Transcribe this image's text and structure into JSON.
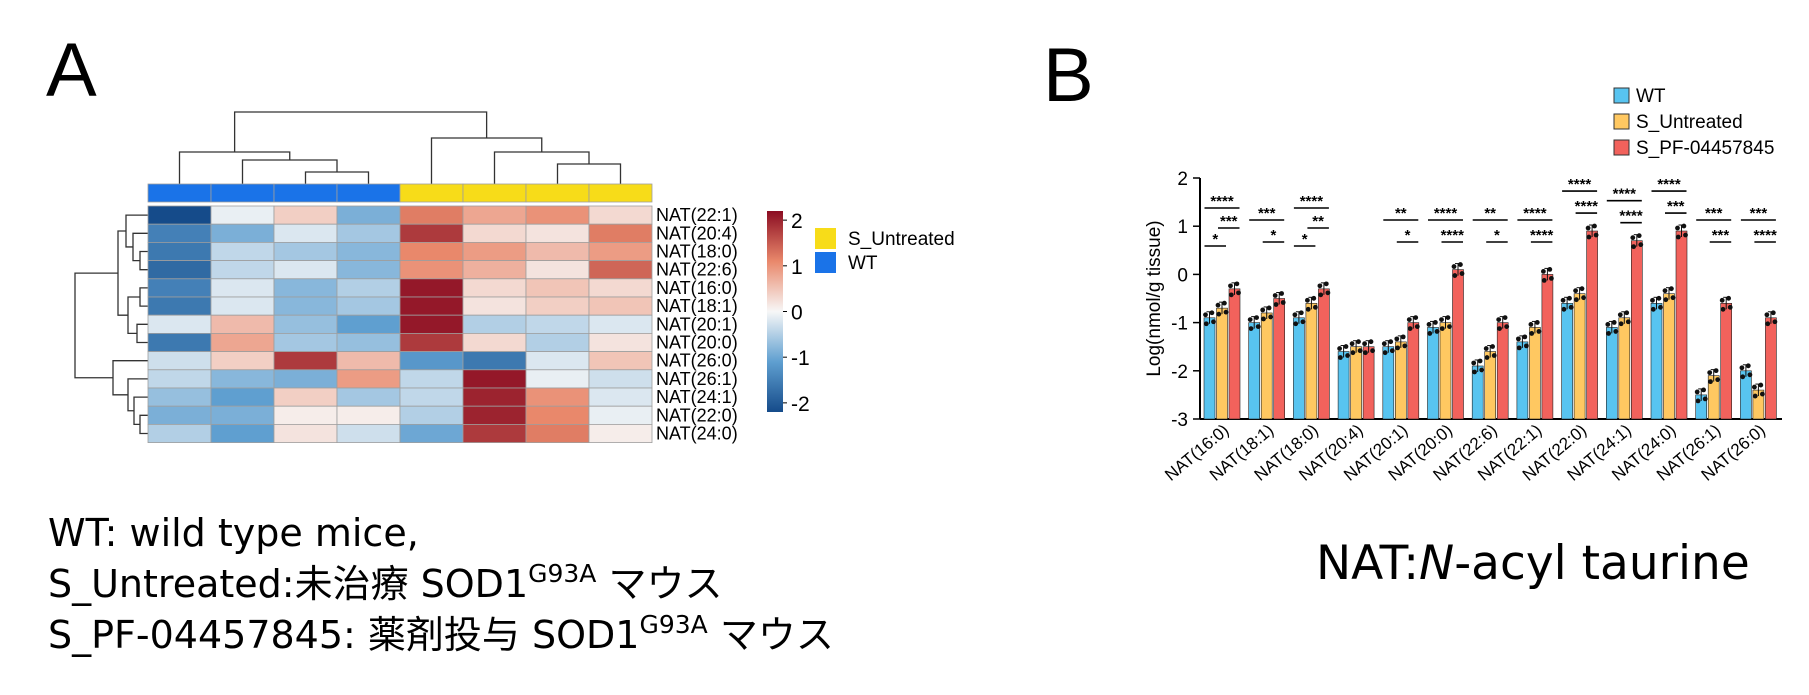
{
  "panels": {
    "a_label": "A",
    "b_label": "B"
  },
  "caption": {
    "line1": "WT: wild type mice,",
    "line2_prefix": "S_Untreated:未治療 SOD1",
    "line2_sup": "G93A",
    "line2_suffix": " マウス",
    "line3_prefix": "S_PF-04457845: 薬剤投与 SOD1",
    "line3_sup": "G93A",
    "line3_suffix": " マウス"
  },
  "nat_note": {
    "prefix": "NAT:",
    "italic": "N",
    "suffix": "-acyl taurine"
  },
  "chart_data": [
    {
      "type": "heatmap",
      "panel": "A",
      "rows": [
        "NAT(22:1)",
        "NAT(20:4)",
        "NAT(18:0)",
        "NAT(22:6)",
        "NAT(16:0)",
        "NAT(18:1)",
        "NAT(20:1)",
        "NAT(20:0)",
        "NAT(26:0)",
        "NAT(26:1)",
        "NAT(24:1)",
        "NAT(22:0)",
        "NAT(24:0)"
      ],
      "column_groups": [
        "WT",
        "WT",
        "WT",
        "WT",
        "S_Untreated",
        "S_Untreated",
        "S_Untreated",
        "S_Untreated"
      ],
      "values": [
        [
          -2.2,
          -0.1,
          0.4,
          -0.9,
          1.2,
          0.8,
          1.0,
          0.3
        ],
        [
          -1.5,
          -0.9,
          -0.2,
          -0.6,
          1.8,
          0.3,
          0.2,
          1.2
        ],
        [
          -1.6,
          -0.4,
          -0.6,
          -0.8,
          1.1,
          0.9,
          0.6,
          0.9
        ],
        [
          -1.8,
          -0.4,
          -0.2,
          -0.8,
          1.0,
          0.7,
          0.2,
          1.4
        ],
        [
          -1.5,
          -0.2,
          -0.8,
          -0.5,
          2.1,
          0.3,
          0.5,
          0.3
        ],
        [
          -1.6,
          -0.2,
          -0.8,
          -0.6,
          2.1,
          0.2,
          0.4,
          0.5
        ],
        [
          -0.2,
          0.6,
          -0.7,
          -1.1,
          2.1,
          -0.5,
          -0.4,
          -0.2
        ],
        [
          -1.6,
          0.8,
          -0.6,
          -0.7,
          1.8,
          0.3,
          -0.5,
          0.2
        ],
        [
          -0.3,
          0.4,
          1.8,
          0.6,
          -1.2,
          -1.6,
          -0.2,
          0.5
        ],
        [
          -0.4,
          -0.8,
          -0.9,
          0.9,
          -0.4,
          2.1,
          -0.1,
          -0.3
        ],
        [
          -0.7,
          -1.1,
          0.4,
          -0.6,
          -0.4,
          2.0,
          1.0,
          -0.2
        ],
        [
          -0.9,
          -0.9,
          0.1,
          0.1,
          -0.5,
          2.0,
          1.1,
          -0.1
        ],
        [
          -0.5,
          -1.1,
          0.2,
          -0.3,
          -1.0,
          1.8,
          1.2,
          0.1
        ]
      ],
      "scale": {
        "ticks": [
          "2",
          "1",
          "0",
          "-1",
          "-2"
        ],
        "min": -2.2,
        "max": 2.2
      },
      "legend": [
        {
          "label": "S_Untreated",
          "color": "#f7dc19"
        },
        {
          "label": "WT",
          "color": "#1a73e8"
        }
      ],
      "colors": {
        "low": "#154b8a",
        "mid": "#f7f7f7",
        "high": "#8b0d22",
        "wt": "#1a73e8",
        "untreated": "#f7dc19"
      }
    },
    {
      "type": "bar",
      "panel": "B",
      "ylabel": "Log(nmol/g tissue)",
      "ylim": [
        -3,
        2
      ],
      "yticks": [
        "2",
        "1",
        "0",
        "-1",
        "-2",
        "-3"
      ],
      "categories": [
        "NAT(16:0)",
        "NAT(18:1)",
        "NAT(18:0)",
        "NAT(20:4)",
        "NAT(20:1)",
        "NAT(20:0)",
        "NAT(22:6)",
        "NAT(22:1)",
        "NAT(22:0)",
        "NAT(24:1)",
        "NAT(24:0)",
        "NAT(26:1)",
        "NAT(26:0)"
      ],
      "series": [
        {
          "name": "WT",
          "color": "#58c4f0",
          "values": [
            -0.9,
            -1.0,
            -0.9,
            -1.6,
            -1.5,
            -1.1,
            -1.9,
            -1.4,
            -0.6,
            -1.1,
            -0.6,
            -2.5,
            -2.0
          ]
        },
        {
          "name": "S_Untreated",
          "color": "#ffc861",
          "values": [
            -0.7,
            -0.8,
            -0.6,
            -1.5,
            -1.4,
            -1.0,
            -1.6,
            -1.1,
            -0.4,
            -0.9,
            -0.4,
            -2.1,
            -2.4
          ]
        },
        {
          "name": "S_PF-04457845",
          "color": "#f2625c",
          "values": [
            -0.3,
            -0.5,
            -0.3,
            -1.5,
            -1.0,
            0.1,
            -1.0,
            0.0,
            0.9,
            0.7,
            0.9,
            -0.6,
            -0.9
          ]
        }
      ],
      "significance": [
        {
          "top": "****",
          "mid": "***",
          "low": "*"
        },
        {
          "top": "***",
          "mid": "*",
          "low": ""
        },
        {
          "top": "****",
          "mid": "**",
          "low": "*"
        },
        {
          "top": "",
          "mid": "",
          "low": ""
        },
        {
          "top": "**",
          "mid": "*",
          "low": ""
        },
        {
          "top": "****",
          "mid": "****",
          "low": ""
        },
        {
          "top": "**",
          "mid": "*",
          "low": ""
        },
        {
          "top": "****",
          "mid": "****",
          "low": ""
        },
        {
          "top": "****",
          "mid": "****",
          "low": ""
        },
        {
          "top": "****",
          "mid": "****",
          "low": ""
        },
        {
          "top": "****",
          "mid": "***",
          "low": ""
        },
        {
          "top": "***",
          "mid": "***",
          "low": ""
        },
        {
          "top": "***",
          "mid": "****",
          "low": ""
        }
      ],
      "legend_position": "top-right"
    }
  ]
}
